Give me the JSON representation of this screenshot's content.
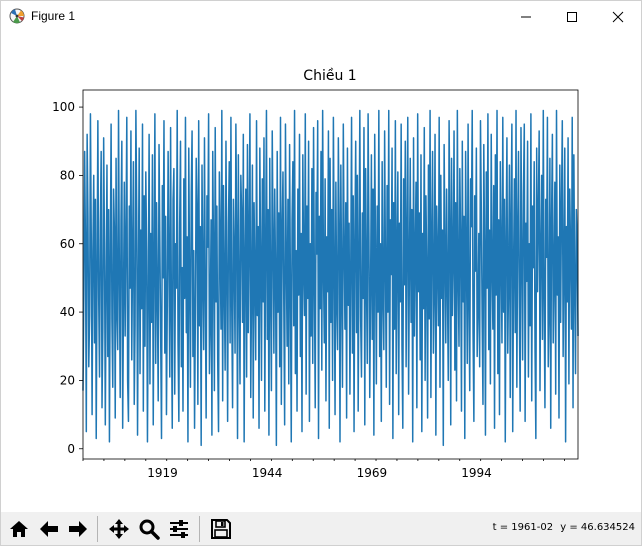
{
  "window": {
    "title": "Figure 1",
    "icon": "matplotlib-icon"
  },
  "window_controls": {
    "minimize_icon": "minimize-icon",
    "maximize_icon": "maximize-icon",
    "close_icon": "close-icon"
  },
  "toolbar": {
    "buttons": [
      {
        "name": "home",
        "icon": "home-icon"
      },
      {
        "name": "back",
        "icon": "back-arrow-icon"
      },
      {
        "name": "forward",
        "icon": "forward-arrow-icon"
      },
      {
        "name": "pan",
        "icon": "pan-move-icon"
      },
      {
        "name": "zoom",
        "icon": "zoom-magnifier-icon"
      },
      {
        "name": "configure-subplots",
        "icon": "sliders-icon"
      },
      {
        "name": "save",
        "icon": "save-disk-icon"
      }
    ]
  },
  "status": {
    "t": "t = 1961-02",
    "y": "y = 46.634524"
  },
  "chart_data": {
    "type": "line",
    "title": "Chiều 1",
    "xlabel": "",
    "ylabel": "",
    "x_start": "1900-01",
    "x_end": "2018-04",
    "x_frequency": "monthly",
    "xlim": [
      "1900-01",
      "2018-04"
    ],
    "ylim": [
      -3,
      105
    ],
    "xticks": [
      "1919",
      "1944",
      "1969",
      "1994"
    ],
    "yticks": [
      0,
      20,
      40,
      60,
      80,
      100
    ],
    "series": [
      {
        "color": "#1f77b4",
        "pattern": "dense pseudo-random monthly values between 0 and 100 filling the plot area",
        "values": [
          [
            17,
            45,
            87,
            59,
            5,
            92,
            68,
            24,
            39,
            98,
            62,
            10,
            58,
            80,
            31,
            73,
            3,
            51,
            96,
            44,
            21,
            66,
            87,
            12,
            35,
            91,
            60,
            7,
            48,
            83,
            27,
            70,
            2,
            55,
            95,
            38,
            18,
            76,
            64,
            9
          ],
          [
            85,
            40,
            29,
            99,
            52,
            15,
            67,
            90,
            6,
            43,
            78,
            33,
            61,
            97,
            20,
            8,
            71,
            47,
            93,
            26,
            57,
            84,
            13,
            36,
            99,
            69,
            4,
            50,
            88,
            22,
            64,
            41,
            95,
            11,
            74,
            30,
            81,
            58,
            2,
            46
          ],
          [
            92,
            19,
            63,
            37,
            86,
            7,
            54,
            98,
            25,
            72,
            45,
            14,
            89,
            61,
            33,
            3,
            77,
            50,
            96,
            28,
            68,
            10,
            42,
            87,
            55,
            21,
            94,
            39,
            6,
            73,
            82,
            16,
            60,
            47,
            99,
            31,
            8,
            66,
            90,
            24
          ],
          [
            53,
            11,
            79,
            44,
            97,
            34,
            62,
            2,
            88,
            49,
            18,
            75,
            93,
            27,
            58,
            6,
            40,
            85,
            70,
            13,
            96,
            36,
            65,
            1,
            83,
            51,
            29,
            91,
            46,
            9,
            74,
            59,
            98,
            22,
            38,
            67,
            4,
            87,
            56,
            17
          ],
          [
            94,
            43,
            71,
            26,
            5,
            81,
            60,
            35,
            99,
            14,
            77,
            48,
            23,
            90,
            52,
            8,
            66,
            84,
            31,
            97,
            41,
            12,
            73,
            57,
            28,
            95,
            63,
            3,
            86,
            45,
            19,
            80,
            68,
            37,
            92,
            2,
            55,
            76,
            21,
            89
          ],
          [
            34,
            61,
            98,
            15,
            47,
            83,
            9,
            72,
            50,
            26,
            96,
            39,
            65,
            6,
            88,
            54,
            20,
            79,
            43,
            91,
            11,
            58,
            99,
            32,
            70,
            4,
            85,
            46,
            17,
            93,
            62,
            28,
            76,
            51,
            1,
            87,
            40,
            69,
            24,
            97
          ],
          [
            13,
            64,
            81,
            42,
            7,
            95,
            56,
            30,
            73,
            19,
            89,
            48,
            2,
            67,
            84,
            36,
            99,
            22,
            58,
            11,
            76,
            45,
            92,
            27,
            63,
            5,
            86,
            53,
            39,
            98,
            16,
            71,
            44,
            90,
            8,
            60,
            33,
            82,
            25,
            94
          ],
          [
            49,
            12,
            75,
            57,
            96,
            3,
            68,
            41,
            87,
            23,
            99,
            52,
            31,
            79,
            14,
            62,
            46,
            93,
            6,
            85,
            37,
            70,
            20,
            97,
            55,
            10,
            78,
            43,
            29,
            91,
            65,
            2,
            83,
            48,
            18,
            95,
            59,
            35,
            72,
            9
          ],
          [
            88,
            42,
            66,
            16,
            53,
            97,
            28,
            74,
            5,
            61,
            90,
            34,
            80,
            11,
            56,
            99,
            38,
            21,
            69,
            44,
            94,
            7,
            82,
            50,
            25,
            98,
            63,
            15,
            47,
            86,
            32,
            76,
            4,
            92,
            57,
            19,
            71,
            40,
            99,
            27
          ],
          [
            60,
            8,
            84,
            45,
            29,
            93,
            54,
            18,
            77,
            40,
            99,
            13,
            67,
            51,
            88,
            3,
            72,
            35,
            96,
            22,
            58,
            81,
            10,
            66,
            43,
            95,
            30,
            6,
            79,
            48,
            90,
            24,
            62,
            97,
            16,
            53,
            85,
            37,
            70,
            2
          ],
          [
            91,
            33,
            57,
            78,
            12,
            98,
            46,
            69,
            26,
            86,
            5,
            63,
            41,
            94,
            20,
            74,
            52,
            9,
            83,
            38,
            99,
            15,
            61,
            87,
            28,
            47,
            92,
            4,
            71,
            56,
            36,
            97,
            18,
            80,
            44,
            64,
            1,
            89,
            59,
            31
          ],
          [
            76,
            48,
            20,
            96,
            66,
            7,
            85,
            39,
            55,
            93,
            23,
            72,
            14,
            99,
            50,
            30,
            82,
            61,
            11,
            90,
            43,
            68,
            3,
            87,
            57,
            25,
            95,
            42,
            17,
            79,
            65,
            99,
            34,
            8,
            74,
            52,
            88,
            27,
            41,
            63
          ],
          [
            24,
            96,
            70,
            38,
            13,
            89,
            58,
            4,
            81,
            47,
            98,
            29,
            64,
            19,
            92,
            53,
            35,
            77,
            6,
            86,
            45,
            99,
            22,
            67,
            10,
            84,
            56,
            31,
            97,
            40,
            73,
            2,
            62,
            91,
            28,
            49,
            83,
            15,
            68,
            95
          ],
          [
            5,
            52,
            79,
            34,
            99,
            18,
            63,
            87,
            42,
            11,
            94,
            57,
            26,
            75,
            95,
            8,
            66,
            49,
            90,
            21,
            60,
            36,
            98,
            14,
            71,
            53,
            84,
            29,
            3,
            88,
            46,
            69,
            93,
            17,
            58,
            80,
            32,
            99,
            44,
            12
          ],
          [
            73,
            56,
            97,
            24,
            40,
            85,
            6,
            67,
            92,
            31,
            50,
            78,
            16,
            99,
            45,
            62,
            9,
            83,
            37,
            71,
            96,
            27,
            54,
            88,
            2,
            65,
            43,
            91,
            19,
            76,
            58,
            35,
            97,
            12,
            86,
            48,
            22,
            70,
            61,
            33
          ]
        ]
      }
    ],
    "grid": false,
    "legend": "none"
  }
}
